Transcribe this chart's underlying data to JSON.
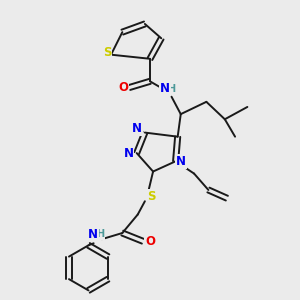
{
  "background_color": "#ebebeb",
  "bond_color": "#1a1a1a",
  "atom_colors": {
    "N": "#0000ee",
    "O": "#ee0000",
    "S": "#cccc00",
    "H": "#4d9999",
    "C": "#1a1a1a"
  },
  "figsize": [
    3.0,
    3.0
  ],
  "dpi": 100
}
